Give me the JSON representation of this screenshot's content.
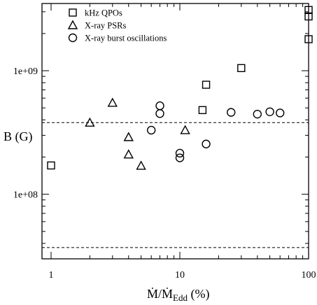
{
  "chart_data": {
    "type": "scatter",
    "xscale": "log",
    "yscale": "log",
    "xlim": [
      0.85,
      100
    ],
    "ylim": [
      30000000,
      3500000000
    ],
    "xlabel": "Ṁ/Ṁ",
    "xlabel_sub": "Edd",
    "xlabel_unit": " (%)",
    "ylabel": "B (G)",
    "x_ticks": [
      {
        "value": 1,
        "label": "1"
      },
      {
        "value": 10,
        "label": "10"
      },
      {
        "value": 100,
        "label": "100"
      }
    ],
    "y_ticks": [
      {
        "value": 100000000,
        "label": "1e+08"
      },
      {
        "value": 1000000000,
        "label": "1e+09"
      }
    ],
    "legend_position": "top-left",
    "reference_lines": [
      {
        "orientation": "horizontal",
        "y": 380000000,
        "style": "dashed"
      },
      {
        "orientation": "horizontal",
        "y": 37000000,
        "style": "dashed"
      }
    ],
    "series": [
      {
        "name": "kHz QPOs",
        "marker": "square",
        "points": [
          {
            "x": 1,
            "y": 171000000
          },
          {
            "x": 15,
            "y": 480000000
          },
          {
            "x": 16,
            "y": 770000000
          },
          {
            "x": 30,
            "y": 1050000000
          },
          {
            "x": 100,
            "y": 1800000000
          },
          {
            "x": 100,
            "y": 2750000000
          },
          {
            "x": 100,
            "y": 3100000000
          }
        ]
      },
      {
        "name": "X-ray PSRs",
        "marker": "triangle",
        "points": [
          {
            "x": 2,
            "y": 380000000
          },
          {
            "x": 3,
            "y": 550000000
          },
          {
            "x": 4,
            "y": 290000000
          },
          {
            "x": 4,
            "y": 210000000
          },
          {
            "x": 5,
            "y": 170000000
          },
          {
            "x": 11,
            "y": 330000000
          }
        ]
      },
      {
        "name": "X-ray burst oscillations",
        "marker": "circle",
        "points": [
          {
            "x": 6,
            "y": 330000000
          },
          {
            "x": 7,
            "y": 520000000
          },
          {
            "x": 7,
            "y": 450000000
          },
          {
            "x": 10,
            "y": 215000000
          },
          {
            "x": 10,
            "y": 197000000
          },
          {
            "x": 16,
            "y": 255000000
          },
          {
            "x": 25,
            "y": 460000000
          },
          {
            "x": 40,
            "y": 445000000
          },
          {
            "x": 50,
            "y": 465000000
          },
          {
            "x": 60,
            "y": 455000000
          }
        ]
      }
    ]
  }
}
